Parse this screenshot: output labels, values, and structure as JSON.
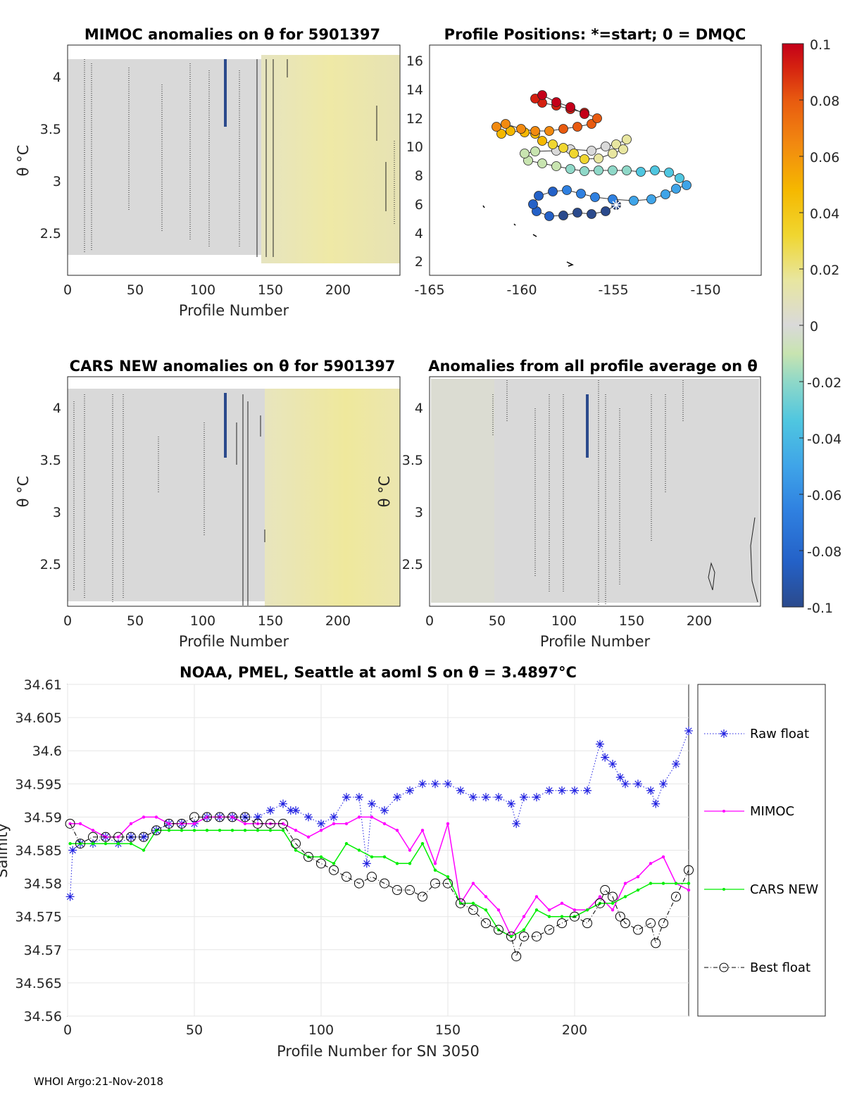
{
  "footer": "WHOI Argo:21-Nov-2018",
  "colors": {
    "raw": "#1f1fe0",
    "mimoc": "#ff00ff",
    "cars": "#00ee00",
    "best": "#000000",
    "anomaly_yellow": "#ece9a6",
    "anomaly_gray": "#d8d8d8",
    "colormap": [
      "#2b4a8c",
      "#2461c7",
      "#2f80e0",
      "#3fa4e8",
      "#4fc6e0",
      "#8fd8c8",
      "#c8e4b0",
      "#d9d9d9",
      "#e8e6a0",
      "#f0d630",
      "#f5b800",
      "#f28a10",
      "#e85a10",
      "#d42010",
      "#c4001a"
    ]
  },
  "panels": {
    "mimoc": {
      "title": "MIMOC anomalies on θ  for 5901397",
      "xlabel": "Profile Number",
      "ylabel": "θ °C",
      "xticks": [
        "0",
        "50",
        "100",
        "150",
        "200"
      ],
      "yticks": [
        "4",
        "3.5",
        "3",
        "2.5"
      ]
    },
    "positions": {
      "title": "Profile Positions: *=start; 0 = DMQC",
      "xticks": [
        "-165",
        "-160",
        "-155",
        "-150"
      ],
      "yticks": [
        "16",
        "14",
        "12",
        "10",
        "8",
        "6",
        "4",
        "2"
      ]
    },
    "cars": {
      "title": "CARS NEW anomalies on θ for 5901397",
      "xlabel": "Profile Number",
      "ylabel": "θ °C",
      "xticks": [
        "0",
        "50",
        "100",
        "150",
        "200"
      ],
      "yticks": [
        "4",
        "3.5",
        "3",
        "2.5"
      ]
    },
    "allavg": {
      "title": "Anomalies from all profile average on θ",
      "xlabel": "Profile Number",
      "ylabel": "θ °C",
      "xticks": [
        "0",
        "50",
        "100",
        "150",
        "200"
      ],
      "yticks": [
        "4",
        "3.5",
        "3",
        "2.5"
      ]
    },
    "colorbar": {
      "ticks": [
        "0.1",
        "0.08",
        "0.06",
        "0.04",
        "0.02",
        "0",
        "-0.02",
        "-0.04",
        "-0.06",
        "-0.08",
        "-0.1"
      ]
    }
  },
  "chart_data": {
    "type": "line",
    "title": "NOAA, PMEL, Seattle at aoml S on θ = 3.4897°C",
    "xlabel": "Profile Number for SN 3050",
    "ylabel": "Salinity",
    "xlim": [
      0,
      245
    ],
    "ylim": [
      34.56,
      34.61
    ],
    "xticks": [
      "0",
      "50",
      "100",
      "150",
      "200"
    ],
    "yticks": [
      "34.61",
      "34.605",
      "34.6",
      "34.595",
      "34.59",
      "34.585",
      "34.58",
      "34.575",
      "34.57",
      "34.565",
      "34.56"
    ],
    "legend_position": "right",
    "series": [
      {
        "name": "Raw float",
        "x": [
          1,
          2,
          5,
          10,
          15,
          20,
          25,
          30,
          35,
          40,
          45,
          50,
          55,
          60,
          65,
          70,
          75,
          80,
          85,
          88,
          90,
          95,
          100,
          105,
          110,
          115,
          118,
          120,
          125,
          130,
          135,
          140,
          145,
          150,
          155,
          160,
          165,
          170,
          175,
          177,
          180,
          185,
          190,
          195,
          200,
          205,
          210,
          212,
          215,
          218,
          220,
          225,
          230,
          232,
          235,
          240,
          245
        ],
        "values": [
          34.578,
          34.585,
          34.586,
          34.586,
          34.587,
          34.586,
          34.587,
          34.587,
          34.588,
          34.589,
          34.589,
          34.589,
          34.59,
          34.59,
          34.59,
          34.59,
          34.59,
          34.591,
          34.592,
          34.591,
          34.591,
          34.59,
          34.589,
          34.59,
          34.593,
          34.593,
          34.583,
          34.592,
          34.591,
          34.593,
          34.594,
          34.595,
          34.595,
          34.595,
          34.594,
          34.593,
          34.593,
          34.593,
          34.592,
          34.589,
          34.593,
          34.593,
          34.594,
          34.594,
          34.594,
          34.594,
          34.601,
          34.599,
          34.598,
          34.596,
          34.595,
          34.595,
          34.594,
          34.592,
          34.595,
          34.598,
          34.603
        ]
      },
      {
        "name": "MIMOC",
        "x": [
          1,
          5,
          10,
          15,
          20,
          25,
          30,
          35,
          40,
          45,
          50,
          55,
          60,
          65,
          70,
          75,
          80,
          85,
          90,
          95,
          100,
          105,
          110,
          115,
          120,
          125,
          130,
          135,
          140,
          145,
          150,
          155,
          160,
          165,
          170,
          175,
          180,
          185,
          190,
          195,
          200,
          205,
          210,
          215,
          220,
          225,
          230,
          235,
          240,
          245
        ],
        "values": [
          34.589,
          34.589,
          34.588,
          34.587,
          34.587,
          34.589,
          34.59,
          34.59,
          34.589,
          34.589,
          34.589,
          34.59,
          34.59,
          34.59,
          34.589,
          34.589,
          34.589,
          34.589,
          34.588,
          34.587,
          34.588,
          34.589,
          34.589,
          34.59,
          34.59,
          34.589,
          34.588,
          34.585,
          34.588,
          34.583,
          34.589,
          34.577,
          34.58,
          34.578,
          34.576,
          34.572,
          34.575,
          34.578,
          34.576,
          34.577,
          34.576,
          34.576,
          34.578,
          34.576,
          34.58,
          34.581,
          34.583,
          34.584,
          34.58,
          34.579
        ]
      },
      {
        "name": "CARS NEW",
        "x": [
          1,
          5,
          10,
          15,
          20,
          25,
          30,
          35,
          40,
          45,
          50,
          55,
          60,
          65,
          70,
          75,
          80,
          85,
          90,
          95,
          100,
          105,
          110,
          115,
          120,
          125,
          130,
          135,
          140,
          145,
          150,
          155,
          160,
          165,
          170,
          175,
          180,
          185,
          190,
          195,
          200,
          205,
          210,
          215,
          220,
          225,
          230,
          235,
          240,
          245
        ],
        "values": [
          34.586,
          34.586,
          34.586,
          34.586,
          34.586,
          34.586,
          34.585,
          34.588,
          34.588,
          34.588,
          34.588,
          34.588,
          34.588,
          34.588,
          34.588,
          34.588,
          34.588,
          34.588,
          34.585,
          34.584,
          34.584,
          34.583,
          34.586,
          34.585,
          34.584,
          34.584,
          34.583,
          34.583,
          34.586,
          34.582,
          34.581,
          34.577,
          34.577,
          34.576,
          34.573,
          34.572,
          34.573,
          34.576,
          34.575,
          34.575,
          34.575,
          34.576,
          34.577,
          34.577,
          34.578,
          34.579,
          34.58,
          34.58,
          34.58,
          34.58
        ]
      },
      {
        "name": "Best float",
        "x": [
          1,
          5,
          10,
          15,
          20,
          25,
          30,
          35,
          40,
          45,
          50,
          55,
          60,
          65,
          70,
          75,
          80,
          85,
          90,
          95,
          100,
          105,
          110,
          115,
          120,
          125,
          130,
          135,
          140,
          145,
          150,
          155,
          160,
          165,
          170,
          175,
          177,
          180,
          185,
          190,
          195,
          200,
          205,
          210,
          212,
          215,
          218,
          220,
          225,
          230,
          232,
          235,
          240,
          245
        ],
        "values": [
          34.589,
          34.586,
          34.587,
          34.587,
          34.587,
          34.587,
          34.587,
          34.588,
          34.589,
          34.589,
          34.59,
          34.59,
          34.59,
          34.59,
          34.59,
          34.589,
          34.589,
          34.589,
          34.586,
          34.584,
          34.583,
          34.582,
          34.581,
          34.58,
          34.581,
          34.58,
          34.579,
          34.579,
          34.578,
          34.58,
          34.58,
          34.577,
          34.576,
          34.574,
          34.573,
          34.572,
          34.569,
          34.572,
          34.572,
          34.573,
          34.574,
          34.575,
          34.574,
          34.577,
          34.579,
          34.578,
          34.575,
          34.574,
          34.573,
          34.574,
          34.571,
          34.574,
          34.578,
          34.582
        ]
      }
    ]
  }
}
